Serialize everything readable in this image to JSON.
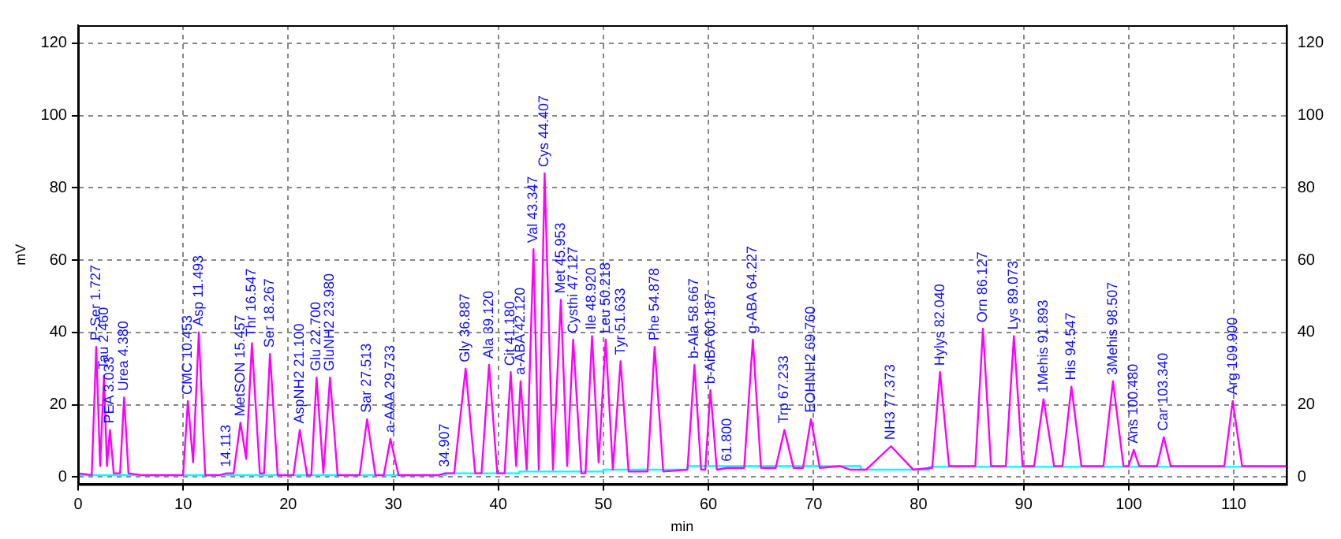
{
  "chart_data": {
    "type": "line",
    "xlabel": "min",
    "ylabel": "mV",
    "xlim": [
      0,
      115
    ],
    "xticks": [
      0,
      10,
      20,
      30,
      40,
      50,
      60,
      70,
      80,
      90,
      100,
      110
    ],
    "ylim": [
      -2,
      125
    ],
    "yticks": [
      0,
      20,
      40,
      60,
      80,
      100,
      120
    ],
    "y2lim": [
      -2,
      125
    ],
    "y2ticks": [
      0,
      20,
      40,
      60,
      80,
      100,
      120
    ],
    "grid": true,
    "legend": false,
    "marker": "none",
    "line_style": "solid",
    "series": [
      {
        "color": "#ff00ff",
        "x": [
          0,
          1.3,
          1.727,
          2.1,
          2.46,
          2.75,
          3.033,
          3.4,
          4.0,
          4.38,
          4.8,
          6,
          10,
          10.453,
          10.95,
          11.493,
          12.1,
          13.5,
          14.113,
          14.8,
          15.457,
          16,
          16.547,
          17.3,
          17.7,
          18.267,
          19,
          20.5,
          21.1,
          21.8,
          22.2,
          22.7,
          23.35,
          23.98,
          24.7,
          26.8,
          27.513,
          28.3,
          29.1,
          29.733,
          30.5,
          34.3,
          34.907,
          35.8,
          36.887,
          37.8,
          38.4,
          39.12,
          39.9,
          40.6,
          41.18,
          41.7,
          42.12,
          42.7,
          43.347,
          43.85,
          44.407,
          45.2,
          45.953,
          46.55,
          47.127,
          47.9,
          48.3,
          48.92,
          49.55,
          50.218,
          50.9,
          51.633,
          52.4,
          54.2,
          54.878,
          55.7,
          58,
          58.667,
          59.3,
          59.7,
          60.187,
          60.8,
          61.8,
          63.4,
          64.227,
          65,
          66.4,
          67.233,
          68.1,
          69,
          69.76,
          70.6,
          72.5,
          73.5,
          75,
          77.373,
          79.5,
          81.3,
          82.04,
          82.9,
          85.4,
          86.127,
          86.9,
          88.3,
          89.073,
          89.9,
          91,
          91.893,
          92.9,
          93.7,
          94.547,
          95.5,
          97.6,
          98.507,
          99.5,
          100,
          100.48,
          101,
          102.7,
          103.34,
          104,
          109.1,
          109.9,
          110.8,
          115
        ],
        "values": [
          1,
          0.5,
          36,
          3,
          28,
          3,
          13,
          1,
          1,
          22,
          1,
          0.5,
          0.5,
          21,
          4,
          40,
          0.5,
          0.5,
          1,
          1,
          15,
          5,
          37,
          1,
          1,
          34,
          0.5,
          0.5,
          13,
          0.5,
          0.5,
          27.5,
          1,
          27.5,
          0.5,
          0.5,
          16,
          0.5,
          0.5,
          10.5,
          0.5,
          0.5,
          1,
          1,
          30,
          1,
          1,
          31,
          1,
          1,
          29,
          3,
          26.5,
          2,
          63,
          2,
          84,
          2,
          49,
          3,
          38,
          1,
          1,
          39,
          4,
          38,
          2,
          32,
          1.5,
          1.5,
          36,
          1.5,
          2,
          31,
          2,
          2,
          24,
          2,
          2.5,
          2.5,
          38,
          2.5,
          2.5,
          13,
          2.5,
          2.5,
          16,
          2.5,
          3,
          2,
          2,
          8.5,
          2,
          2.5,
          29,
          3,
          3,
          41,
          3,
          3,
          39,
          3,
          3,
          21.5,
          3,
          3,
          25,
          3,
          3,
          26.5,
          3,
          3,
          7.5,
          3,
          3,
          11,
          3,
          3,
          21,
          3,
          3
        ]
      },
      {
        "color": "#00ffff",
        "x": [
          0,
          35,
          35,
          42,
          42,
          50,
          50,
          58,
          58,
          74.5,
          74.5,
          81,
          81,
          115
        ],
        "values": [
          0.5,
          0.5,
          1,
          1,
          1.5,
          1.5,
          2,
          2,
          3,
          3,
          2,
          2,
          2.8,
          2.8
        ]
      }
    ],
    "annotations": [
      {
        "text": "P-Ser 1.727",
        "x": 1.727,
        "y": 36
      },
      {
        "text": "Tau 2.460",
        "x": 2.46,
        "y": 28
      },
      {
        "text": "PEA 3.033",
        "x": 3.033,
        "y": 13
      },
      {
        "text": "Urea 4.380",
        "x": 4.38,
        "y": 22
      },
      {
        "text": "CMC 10.453",
        "x": 10.453,
        "y": 21
      },
      {
        "text": "Asp 11.493",
        "x": 11.493,
        "y": 40
      },
      {
        "text": "14.113",
        "x": 14.113,
        "y": 1
      },
      {
        "text": "MetSON 15.457",
        "x": 15.457,
        "y": 15
      },
      {
        "text": "Thr 16.547",
        "x": 16.547,
        "y": 37
      },
      {
        "text": "Ser 18.267",
        "x": 18.267,
        "y": 34
      },
      {
        "text": "AspNH2 21.100",
        "x": 21.1,
        "y": 13
      },
      {
        "text": "Glu 22.700",
        "x": 22.7,
        "y": 27.5
      },
      {
        "text": "GluNH2 23.980",
        "x": 23.98,
        "y": 27.5
      },
      {
        "text": "Sar 27.513",
        "x": 27.513,
        "y": 16
      },
      {
        "text": "a-AAA 29.733",
        "x": 29.733,
        "y": 10.5
      },
      {
        "text": "34.907",
        "x": 34.907,
        "y": 1
      },
      {
        "text": "Gly 36.887",
        "x": 36.887,
        "y": 30
      },
      {
        "text": "Ala 39.120",
        "x": 39.12,
        "y": 31
      },
      {
        "text": "Cit 41.180",
        "x": 41.18,
        "y": 29
      },
      {
        "text": "a-ABA 42.120",
        "x": 42.12,
        "y": 26.5
      },
      {
        "text": "Val 43.347",
        "x": 43.347,
        "y": 63
      },
      {
        "text": "Cys 44.407",
        "x": 44.407,
        "y": 84
      },
      {
        "text": "Met 45.953",
        "x": 45.953,
        "y": 49
      },
      {
        "text": "Cysthi 47.127",
        "x": 47.127,
        "y": 38
      },
      {
        "text": "Ile 48.920",
        "x": 48.92,
        "y": 39
      },
      {
        "text": "Leu 50.218",
        "x": 50.218,
        "y": 38
      },
      {
        "text": "Tyr 51.633",
        "x": 51.633,
        "y": 32
      },
      {
        "text": "Phe 54.878",
        "x": 54.878,
        "y": 36
      },
      {
        "text": "b-Ala 58.667",
        "x": 58.667,
        "y": 31
      },
      {
        "text": "b-AiBA 60.187",
        "x": 60.187,
        "y": 24
      },
      {
        "text": "61.800",
        "x": 61.8,
        "y": 2.5
      },
      {
        "text": "g-ABA 64.227",
        "x": 64.227,
        "y": 38
      },
      {
        "text": "Trp 67.233",
        "x": 67.233,
        "y": 13
      },
      {
        "text": "EOHNH2 69.760",
        "x": 69.76,
        "y": 16
      },
      {
        "text": "NH3 77.373",
        "x": 77.373,
        "y": 8.5
      },
      {
        "text": "Hylys 82.040",
        "x": 82.04,
        "y": 29
      },
      {
        "text": "Orn 86.127",
        "x": 86.127,
        "y": 41
      },
      {
        "text": "Lys 89.073",
        "x": 89.073,
        "y": 39
      },
      {
        "text": "1Mehis 91.893",
        "x": 91.893,
        "y": 21.5
      },
      {
        "text": "His 94.547",
        "x": 94.547,
        "y": 25
      },
      {
        "text": "3Mehis 98.507",
        "x": 98.507,
        "y": 26.5
      },
      {
        "text": "Ans 100.480",
        "x": 100.48,
        "y": 7.5
      },
      {
        "text": "Car 103.340",
        "x": 103.34,
        "y": 11
      },
      {
        "text": "Arg 109.900",
        "x": 109.9,
        "y": 21
      }
    ]
  }
}
